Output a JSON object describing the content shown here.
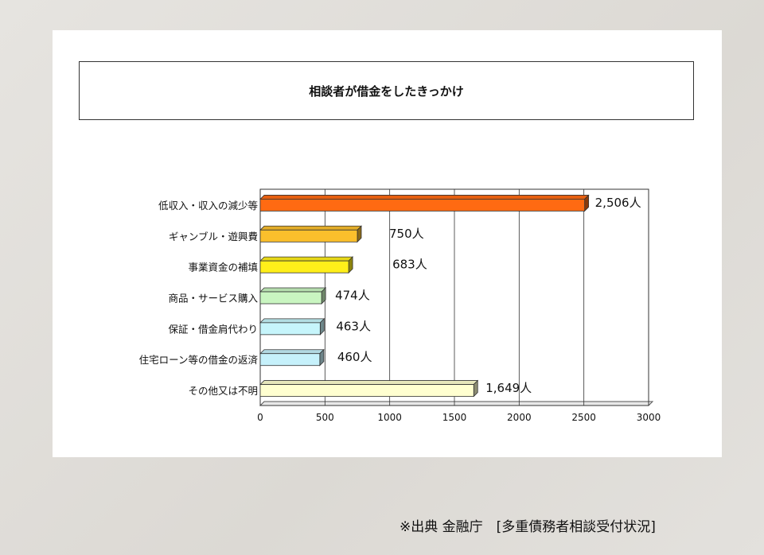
{
  "chart_data": {
    "type": "bar",
    "orientation": "horizontal",
    "title": "相談者が借金をしたきっかけ",
    "categories": [
      "低収入・収入の減少等",
      "ギャンブル・遊興費",
      "事業資金の補填",
      "商品・サービス購入",
      "保証・借金肩代わり",
      "住宅ローン等の借金の返済",
      "その他又は不明"
    ],
    "values": [
      2506,
      750,
      683,
      474,
      463,
      460,
      1649
    ],
    "value_labels": [
      "2,506人",
      "750人",
      "683人",
      "474人",
      "463人",
      "460人",
      "1,649人"
    ],
    "bar_colors": [
      "#ff6a12",
      "#fbbf2c",
      "#ffef1a",
      "#c9f5c1",
      "#c6f5fb",
      "#c6f1fb",
      "#ffffd0"
    ],
    "xlim": [
      0,
      3000
    ],
    "xticks": [
      "0",
      "500",
      "1000",
      "1500",
      "2000",
      "2500",
      "3000"
    ],
    "grid": true,
    "xlabel": "",
    "ylabel": ""
  },
  "source_text": "※出典 金融庁　[多重債務者相談受付状況]"
}
